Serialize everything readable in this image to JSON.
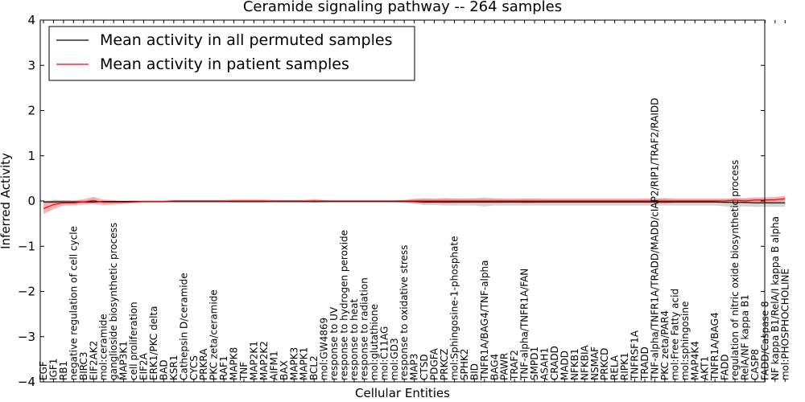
{
  "chart_data": {
    "type": "line",
    "title": "Ceramide signaling pathway -- 264 samples",
    "xlabel": "Cellular Entities",
    "ylabel": "Inferred Activity",
    "ylim": [
      -4,
      4
    ],
    "yticks": [
      4,
      3,
      2,
      1,
      0,
      -1,
      -2,
      -3,
      -4
    ],
    "ytick_labels": [
      "4",
      "3",
      "2",
      "1",
      "0",
      "−1",
      "−2",
      "−3",
      "−4"
    ],
    "legend_position": "top-left",
    "categories": [
      "EGF",
      "IGF1",
      "RB1",
      "negative regulation of cell cycle",
      "BIRC3",
      "EIF2AK2",
      "mol:ceramide",
      "ganglioside biosynthetic process",
      "MAP3K1",
      "cell proliferation",
      "EIF2A",
      "ERK1/PKC delta",
      "BAD",
      "KSR1",
      "Cathepsin D/ceramide",
      "CYCS",
      "PRKRA",
      "PKC zeta/ceramide",
      "RAF1",
      "MAPK8",
      "TNF",
      "MAP2K1",
      "MAP2K2",
      "AIFM1",
      "BAX",
      "MAPK3",
      "MAPK1",
      "BCL2",
      "mol:GW4869",
      "response to UV",
      "response to hydrogen peroxide",
      "response to heat",
      "response to radiation",
      "mol:glutathione",
      "mol:C11AG",
      "mol:GD3",
      "response to oxidative stress",
      "MAP3",
      "CTSD",
      "PDGFA",
      "PRKCZ",
      "mol:Sphingosine-1-phosphate",
      "SPHK2",
      "BID",
      "TNFR1A/BAG4/TNF-alpha",
      "BAG4",
      "PAWR",
      "TRAF2",
      "TNF-alpha/TNFR1A/FAN",
      "SMPD1",
      "ASAH1",
      "CRADD",
      "MADD",
      "NFKB1",
      "NFKBIA",
      "NSMAF",
      "PRKCD",
      "RELA",
      "RIPK1",
      "TNFRSF1A",
      "TRADD",
      "TNF-alpha/TNFR1A/TRADD/MADD/cIAP2/RIP1/TRAF2/RAIDD",
      "PKC zeta/PAR4",
      "mol:Free Fatty acid",
      "mol:sphingosine",
      "MAP4K4",
      "AKT1",
      "TNFR1A/BAG4",
      "FADD",
      "regulation of nitric oxide biosynthetic process",
      "RelA/NF kappa B1",
      "CASP8",
      "FADD/Caspase 8",
      "NF kappa B1/RelA/I kappa B alpha",
      "mol:PHOSPHOCHOLINE"
    ],
    "series": [
      {
        "name": "Mean activity in all permuted samples",
        "color": "#000000",
        "band_color": "#b0b0b0",
        "values": [
          -0.02,
          -0.02,
          -0.02,
          -0.02,
          -0.02,
          -0.02,
          -0.01,
          -0.01,
          -0.01,
          -0.01,
          -0.01,
          -0.01,
          -0.01,
          -0.01,
          -0.01,
          -0.01,
          -0.01,
          -0.01,
          -0.01,
          -0.01,
          -0.01,
          -0.01,
          -0.01,
          -0.01,
          -0.01,
          -0.01,
          -0.01,
          -0.01,
          -0.01,
          -0.01,
          -0.01,
          -0.01,
          -0.01,
          -0.01,
          -0.01,
          -0.01,
          -0.01,
          -0.01,
          -0.02,
          -0.02,
          -0.02,
          -0.02,
          -0.02,
          -0.02,
          -0.02,
          -0.02,
          -0.02,
          -0.02,
          -0.02,
          -0.02,
          -0.02,
          -0.02,
          -0.02,
          -0.02,
          -0.02,
          -0.02,
          -0.02,
          -0.02,
          -0.02,
          -0.02,
          -0.02,
          -0.02,
          -0.02,
          -0.02,
          -0.02,
          -0.02,
          -0.02,
          -0.02,
          -0.03,
          -0.03,
          -0.03,
          -0.04,
          -0.04,
          -0.04,
          -0.04
        ],
        "std": [
          0.03,
          0.03,
          0.03,
          0.03,
          0.03,
          0.03,
          0.02,
          0.02,
          0.02,
          0.02,
          0.02,
          0.02,
          0.02,
          0.02,
          0.02,
          0.02,
          0.02,
          0.02,
          0.02,
          0.02,
          0.02,
          0.02,
          0.02,
          0.02,
          0.02,
          0.02,
          0.02,
          0.02,
          0.02,
          0.02,
          0.02,
          0.02,
          0.02,
          0.02,
          0.02,
          0.02,
          0.03,
          0.05,
          0.07,
          0.07,
          0.08,
          0.08,
          0.08,
          0.08,
          0.1,
          0.08,
          0.08,
          0.08,
          0.08,
          0.08,
          0.08,
          0.08,
          0.08,
          0.08,
          0.08,
          0.08,
          0.08,
          0.08,
          0.08,
          0.08,
          0.08,
          0.08,
          0.08,
          0.08,
          0.08,
          0.08,
          0.08,
          0.08,
          0.09,
          0.09,
          0.09,
          0.09,
          0.09,
          0.09,
          0.09
        ]
      },
      {
        "name": "Mean activity in patient samples",
        "color": "#ff0000",
        "band_color": "#f08080",
        "values": [
          -0.17,
          -0.08,
          -0.04,
          -0.04,
          -0.02,
          0.01,
          -0.03,
          -0.03,
          -0.03,
          -0.02,
          -0.01,
          -0.01,
          -0.01,
          0.0,
          0.0,
          0.0,
          0.0,
          0.0,
          0.0,
          0.0,
          0.0,
          0.0,
          0.0,
          0.0,
          0.0,
          0.0,
          0.0,
          0.0,
          0.0,
          0.0,
          0.0,
          0.0,
          0.0,
          0.0,
          0.0,
          0.0,
          0.0,
          0.0,
          0.0,
          0.0,
          0.0,
          0.0,
          0.0,
          0.0,
          0.0,
          0.0,
          0.0,
          0.0,
          0.0,
          0.0,
          0.0,
          0.0,
          0.0,
          0.0,
          0.0,
          0.0,
          0.0,
          0.0,
          0.0,
          0.0,
          0.0,
          0.0,
          0.0,
          0.0,
          0.0,
          0.0,
          0.0,
          0.0,
          0.0,
          0.02,
          0.0,
          0.02,
          0.02,
          0.03,
          0.05
        ],
        "std": [
          0.12,
          0.1,
          0.06,
          0.05,
          0.06,
          0.08,
          0.06,
          0.05,
          0.03,
          0.03,
          0.02,
          0.02,
          0.02,
          0.02,
          0.02,
          0.02,
          0.02,
          0.02,
          0.02,
          0.03,
          0.03,
          0.03,
          0.03,
          0.02,
          0.02,
          0.02,
          0.02,
          0.04,
          0.02,
          0.01,
          0.01,
          0.01,
          0.01,
          0.01,
          0.01,
          0.01,
          0.02,
          0.05,
          0.06,
          0.05,
          0.06,
          0.05,
          0.05,
          0.05,
          0.05,
          0.05,
          0.04,
          0.04,
          0.05,
          0.05,
          0.04,
          0.04,
          0.04,
          0.04,
          0.04,
          0.04,
          0.04,
          0.04,
          0.04,
          0.04,
          0.04,
          0.05,
          0.06,
          0.04,
          0.04,
          0.04,
          0.04,
          0.04,
          0.04,
          0.05,
          0.06,
          0.06,
          0.06,
          0.06,
          0.06
        ]
      }
    ]
  }
}
